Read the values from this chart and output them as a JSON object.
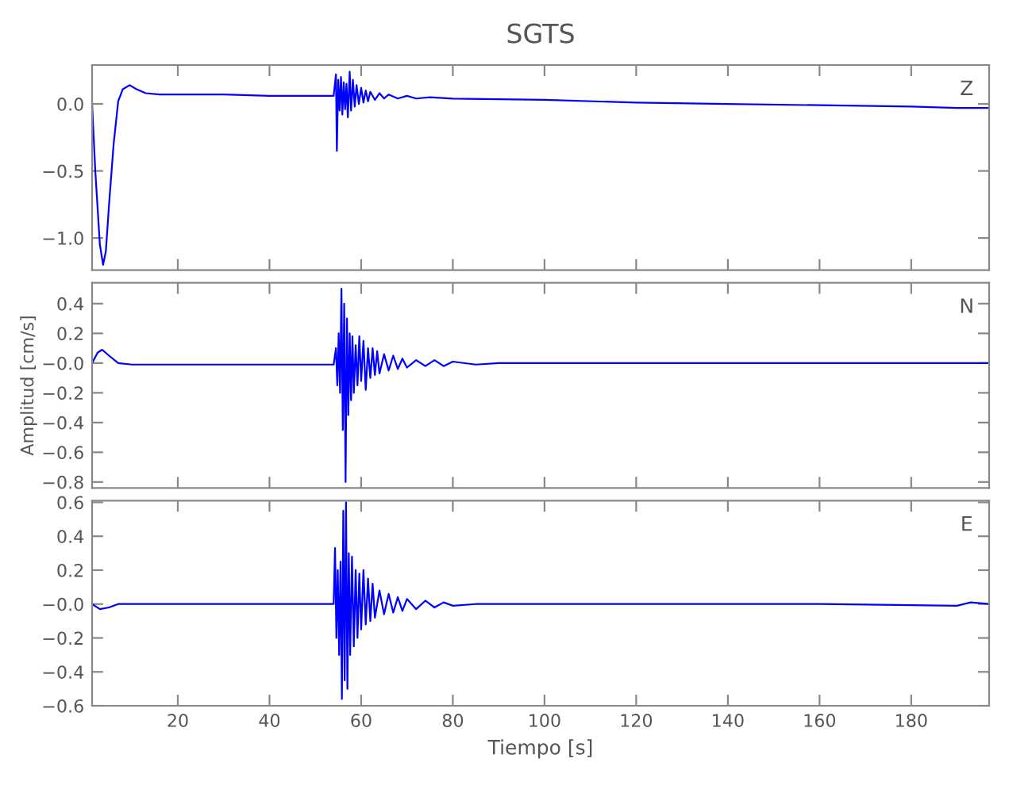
{
  "chart_data": [
    {
      "type": "line",
      "title": "SGTS",
      "annotations": [
        "Z"
      ],
      "tick_labels": "y",
      "grid": false,
      "xlim": [
        1.3,
        197
      ],
      "xticks": [
        20,
        40,
        60,
        80,
        100,
        120,
        140,
        160,
        180
      ],
      "ylim": [
        -1.24,
        0.29
      ],
      "yticks": [
        {
          "value": 0,
          "label": "0.0"
        },
        {
          "value": -0.5,
          "label": "−0.5"
        },
        {
          "value": -1.0,
          "label": "−1.0"
        }
      ],
      "series": [
        {
          "color": "#0000ff",
          "x": [
            1.3,
            2,
            3,
            3.7,
            4.3,
            5,
            6,
            7,
            8,
            9.5,
            11,
            13,
            16,
            20,
            30,
            40,
            50,
            54,
            54.5,
            54.7,
            55,
            55.3,
            55.6,
            55.9,
            56.2,
            56.5,
            56.8,
            57.1,
            57.5,
            57.8,
            58.2,
            58.6,
            59,
            59.5,
            60,
            60.5,
            61,
            61.5,
            62,
            63,
            64,
            65,
            66,
            68,
            70,
            72,
            75,
            80,
            100,
            120,
            140,
            160,
            180,
            190,
            197
          ],
          "values": [
            0.0,
            -0.5,
            -1.05,
            -1.2,
            -1.1,
            -0.75,
            -0.3,
            0.02,
            0.11,
            0.14,
            0.11,
            0.08,
            0.07,
            0.07,
            0.07,
            0.06,
            0.06,
            0.06,
            0.22,
            -0.35,
            0.18,
            -0.05,
            0.2,
            -0.08,
            0.16,
            -0.04,
            0.15,
            -0.1,
            0.24,
            -0.05,
            0.18,
            -0.02,
            0.14,
            0.0,
            0.12,
            0.01,
            0.1,
            0.02,
            0.09,
            0.03,
            0.08,
            0.04,
            0.07,
            0.04,
            0.06,
            0.04,
            0.05,
            0.04,
            0.03,
            0.01,
            0.0,
            -0.01,
            -0.02,
            -0.03,
            -0.03
          ]
        }
      ]
    },
    {
      "type": "line",
      "ylabel": "Amplitud [cm/s]",
      "annotations": [
        "N"
      ],
      "tick_labels": "y",
      "grid": false,
      "xlim": [
        1.3,
        197
      ],
      "xticks": [
        20,
        40,
        60,
        80,
        100,
        120,
        140,
        160,
        180
      ],
      "ylim": [
        -0.84,
        0.54
      ],
      "yticks": [
        {
          "value": 0.4,
          "label": "0.4"
        },
        {
          "value": 0.2,
          "label": "0.2"
        },
        {
          "value": 0,
          "label": "−0.0"
        },
        {
          "value": -0.2,
          "label": "−0.2"
        },
        {
          "value": -0.4,
          "label": "−0.4"
        },
        {
          "value": -0.6,
          "label": "−0.6"
        },
        {
          "value": -0.8,
          "label": "−0.8"
        }
      ],
      "series": [
        {
          "color": "#0000ff",
          "x": [
            1.3,
            2.5,
            3.5,
            5,
            7,
            10,
            20,
            30,
            40,
            50,
            54,
            54.5,
            54.8,
            55.1,
            55.4,
            55.7,
            56.0,
            56.3,
            56.6,
            56.9,
            57.2,
            57.5,
            57.8,
            58.1,
            58.4,
            58.8,
            59.2,
            59.6,
            60,
            60.5,
            61,
            61.5,
            62,
            62.5,
            63,
            63.5,
            64,
            65,
            66,
            67,
            68,
            69,
            70,
            72,
            74,
            76,
            78,
            80,
            85,
            90,
            100,
            120,
            140,
            160,
            180,
            197
          ],
          "values": [
            0.0,
            0.07,
            0.09,
            0.05,
            0.0,
            -0.01,
            -0.01,
            -0.01,
            -0.01,
            -0.01,
            -0.01,
            0.1,
            -0.15,
            0.2,
            -0.2,
            0.5,
            -0.45,
            0.4,
            -0.8,
            0.3,
            -0.35,
            0.2,
            -0.25,
            0.18,
            -0.2,
            0.12,
            -0.15,
            0.18,
            -0.12,
            0.15,
            -0.18,
            0.1,
            -0.1,
            0.1,
            -0.08,
            0.08,
            -0.07,
            0.06,
            -0.05,
            0.05,
            -0.04,
            0.03,
            -0.03,
            0.02,
            -0.02,
            0.02,
            -0.02,
            0.01,
            -0.01,
            0.0,
            0.0,
            0.0,
            0.0,
            0.0,
            0.0,
            0.0
          ]
        }
      ]
    },
    {
      "type": "line",
      "xlabel": "Tiempo [s]",
      "annotations": [
        "E"
      ],
      "grid": false,
      "xlim": [
        1.3,
        197
      ],
      "xticks": [
        20,
        40,
        60,
        80,
        100,
        120,
        140,
        160,
        180
      ],
      "ylim": [
        -0.6,
        0.61
      ],
      "yticks": [
        {
          "value": 0.6,
          "label": "0.6"
        },
        {
          "value": 0.4,
          "label": "0.4"
        },
        {
          "value": 0.2,
          "label": "0.2"
        },
        {
          "value": 0,
          "label": "−0.0"
        },
        {
          "value": -0.2,
          "label": "−0.2"
        },
        {
          "value": -0.4,
          "label": "−0.4"
        },
        {
          "value": -0.6,
          "label": "−0.6"
        }
      ],
      "series": [
        {
          "color": "#0000ff",
          "x": [
            1.3,
            3,
            5,
            7,
            20,
            40,
            54,
            54.3,
            54.6,
            54.9,
            55.2,
            55.5,
            55.8,
            56.1,
            56.4,
            56.7,
            57.0,
            57.3,
            57.6,
            58,
            58.4,
            58.8,
            59.2,
            59.6,
            60,
            60.5,
            61,
            61.5,
            62,
            62.5,
            63,
            64,
            65,
            66,
            67,
            68,
            69,
            70,
            72,
            74,
            76,
            78,
            80,
            85,
            120,
            160,
            190,
            193,
            197
          ],
          "values": [
            0.0,
            -0.03,
            -0.02,
            0.0,
            0.0,
            0.0,
            0.0,
            0.33,
            -0.2,
            0.2,
            -0.3,
            0.25,
            -0.56,
            0.55,
            -0.45,
            0.6,
            -0.5,
            0.3,
            -0.3,
            0.28,
            -0.25,
            0.2,
            -0.2,
            0.18,
            -0.15,
            0.2,
            -0.12,
            0.15,
            -0.1,
            0.12,
            -0.08,
            0.08,
            -0.06,
            0.06,
            -0.05,
            0.04,
            -0.04,
            0.03,
            -0.03,
            0.02,
            -0.02,
            0.01,
            -0.01,
            0.0,
            0.0,
            0.0,
            -0.01,
            0.01,
            0.0
          ]
        }
      ]
    }
  ]
}
